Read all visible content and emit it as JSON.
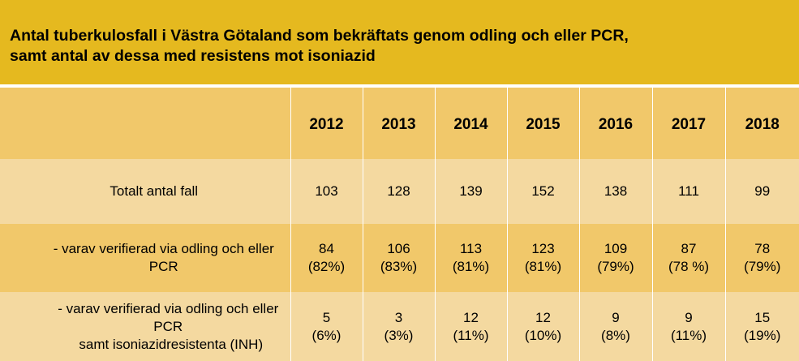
{
  "title": {
    "line1": "Antal tuberkulosfall i Västra Götaland som bekräftats genom odling och eller PCR,",
    "line2": "samt antal av dessa med resistens mot isoniazid"
  },
  "chart_data": {
    "type": "table",
    "title": "Antal tuberkulosfall i Västra Götaland som bekräftats genom odling och eller PCR, samt antal av dessa med resistens mot isoniazid",
    "columns": [
      "2012",
      "2013",
      "2014",
      "2015",
      "2016",
      "2017",
      "2018"
    ],
    "rows": [
      {
        "label": "Totalt antal fall",
        "values": [
          "103",
          "128",
          "139",
          "152",
          "138",
          "111",
          "99"
        ]
      },
      {
        "label": "- varav verifierad via odling och eller PCR",
        "values": [
          "84",
          "106",
          "113",
          "123",
          "109",
          "87",
          "78"
        ],
        "percents": [
          "(82%)",
          "(83%)",
          "(81%)",
          "(81%)",
          "(79%)",
          "(78 %)",
          "(79%)"
        ]
      },
      {
        "label": "- varav verifierad via odling och eller PCR",
        "label2": "samt isoniazidresistenta  (INH)",
        "values": [
          "5",
          "3",
          "12",
          "12",
          "9",
          "9",
          "15"
        ],
        "percents": [
          "(6%)",
          "(3%)",
          "(11%)",
          "(10%)",
          "(8%)",
          "(11%)",
          "(19%)"
        ]
      }
    ]
  },
  "colors": {
    "title_bg": "#e5b91f",
    "row_dark": "#f1c86a",
    "row_light": "#f4d9a0",
    "grid_line": "#ffffff"
  }
}
